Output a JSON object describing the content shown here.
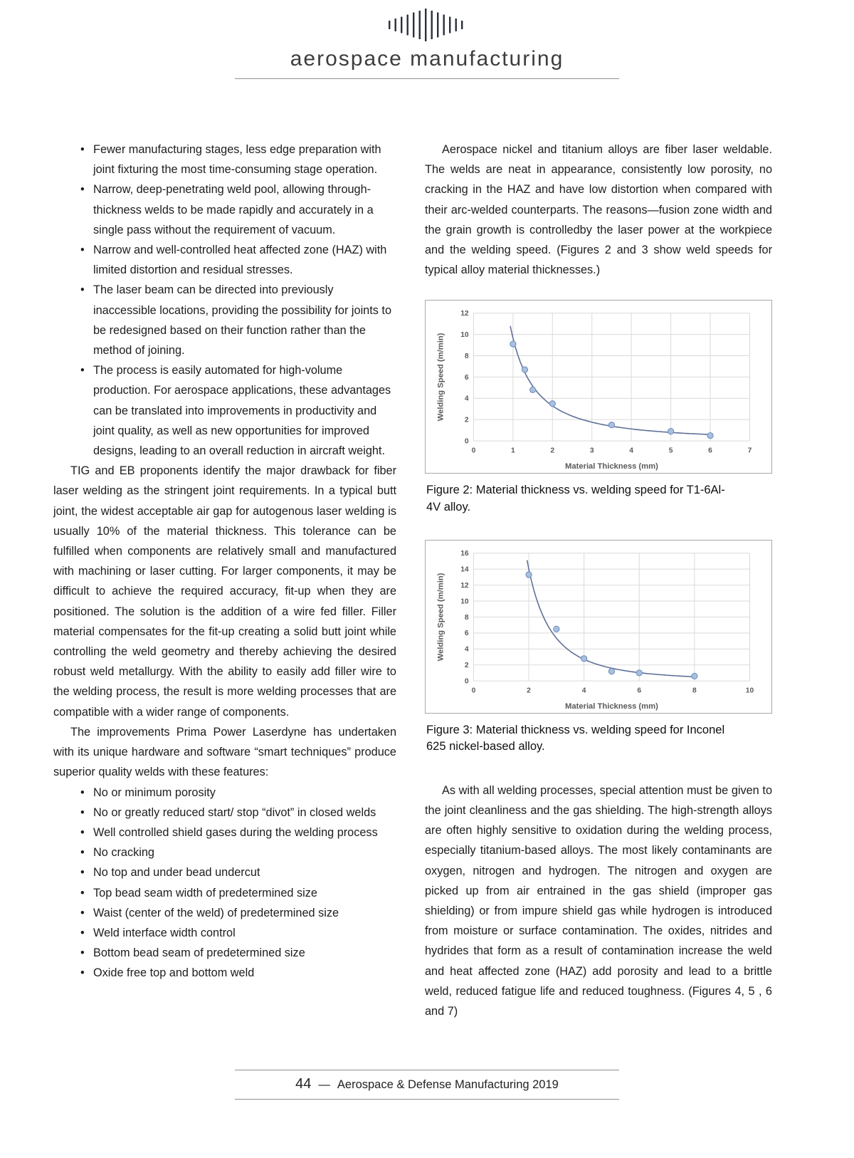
{
  "header": {
    "title": "aerospace manufacturing"
  },
  "left_column": {
    "advantages": [
      "Fewer manufacturing stages, less edge preparation with joint fixturing the most time-consuming stage operation.",
      "Narrow, deep-penetrating weld pool, allowing through-thickness welds to be made rapidly and accurately in a single pass without the requirement of vacuum.",
      "Narrow and well-controlled heat affected zone (HAZ) with limited distortion and residual stresses.",
      "The laser beam can be directed into previously inaccessible locations, providing the possibility for joints to be redesigned based on their function rather than the method of joining.",
      "The process is easily automated for high-volume production. For aerospace applications, these advantages can be translated into improvements in productivity and joint quality, as well as new opportunities for improved designs, leading to an overall reduction in aircraft weight."
    ],
    "paragraph_tig": "TIG and EB proponents identify the major drawback for fiber laser welding as the stringent joint requirements. In a typical butt joint, the widest acceptable air gap for autogenous laser welding is usually 10% of the material thickness. This tolerance can be fulfilled when components are relatively small and manufactured with machining or laser cutting. For larger components, it may be difficult to achieve the required accuracy, fit-up when they are positioned. The solution is the addition of a wire fed filler. Filler material compensates for the fit-up creating a solid butt joint while controlling the weld geometry and thereby achieving the desired robust weld metallurgy. With the ability to easily add filler wire to the welding process, the result is more welding processes that are compatible with a wider range of components.",
    "paragraph_improvements": "The improvements Prima Power Laserdyne has undertaken with its unique hardware and software “smart techniques” produce superior quality welds with these features:",
    "features": [
      "No or minimum porosity",
      "No or greatly reduced start/ stop “divot” in closed welds",
      "Well controlled shield gases during the welding process",
      "No cracking",
      "No top and under bead undercut",
      "Top bead seam width of predetermined size",
      "Waist (center of the weld) of predetermined size",
      "Weld interface width control",
      "Bottom bead seam of predetermined size",
      "Oxide free top and bottom weld"
    ]
  },
  "right_column": {
    "paragraph_intro": "Aerospace nickel and titanium alloys are fiber laser weldable. The welds are neat in appearance, consistently low porosity, no cracking in the HAZ and have low distortion when compared with their arc-welded counterparts. The reasons—fusion zone width and the grain growth is controlledby the laser power at the workpiece and the welding speed. (Figures 2 and 3 show weld speeds for typical alloy material thicknesses.)",
    "figure2_caption": "Figure 2: Material thickness vs. welding speed for T1-6Al-4V alloy.",
    "figure3_caption": "Figure 3: Material thickness vs. welding speed for Inconel 625 nickel-based alloy.",
    "paragraph_contamination": "As with all welding processes, special attention must be given to the joint cleanliness and the gas shielding. The high-strength alloys are often highly sensitive to oxidation during the welding process, especially titanium-based alloys. The most likely contaminants are oxygen, nitrogen and hydrogen. The nitrogen and oxygen are picked up from air entrained in the gas shield (improper gas shielding) or from impure shield gas while hydrogen is introduced from moisture or surface contamination. The oxides, nitrides and hydrides that form as a result of contamination increase the weld and heat affected zone (HAZ) add porosity and lead to a brittle weld, reduced fatigue life and reduced toughness. (Figures 4, 5 , 6 and 7)"
  },
  "footer": {
    "page_number": "44",
    "separator": "—",
    "publication": "Aerospace & Defense Manufacturing 2019"
  },
  "chart_data": [
    {
      "type": "scatter",
      "title": "",
      "xlabel": "Material Thickness (mm)",
      "ylabel": "Welding Speed (m/min)",
      "xlim": [
        0,
        7
      ],
      "xtick_step": 1,
      "ylim": [
        0,
        12
      ],
      "ytick_step": 2,
      "points": [
        {
          "x": 1.0,
          "y": 9.1
        },
        {
          "x": 1.3,
          "y": 6.7
        },
        {
          "x": 1.5,
          "y": 4.8
        },
        {
          "x": 2.0,
          "y": 3.5
        },
        {
          "x": 3.5,
          "y": 1.5
        },
        {
          "x": 5.0,
          "y": 0.9
        },
        {
          "x": 6.0,
          "y": 0.5
        }
      ],
      "trendline": true,
      "grid": true,
      "legend": false,
      "grid_color": "#d9d9d9",
      "axis_text_color": "#595959",
      "point_fill": "#a9c0de",
      "point_stroke": "#6e8fbf",
      "line_color": "#5d6d96"
    },
    {
      "type": "scatter",
      "title": "",
      "xlabel": "Material Thickness (mm)",
      "ylabel": "Welding Speed (m/min)",
      "xlim": [
        0,
        10
      ],
      "xtick_step": 2,
      "ylim": [
        0,
        16
      ],
      "ytick_step": 2,
      "points": [
        {
          "x": 2.0,
          "y": 13.3
        },
        {
          "x": 3.0,
          "y": 6.5
        },
        {
          "x": 4.0,
          "y": 2.8
        },
        {
          "x": 5.0,
          "y": 1.2
        },
        {
          "x": 6.0,
          "y": 1.0
        },
        {
          "x": 8.0,
          "y": 0.6
        }
      ],
      "trendline": true,
      "grid": true,
      "legend": false,
      "grid_color": "#d9d9d9",
      "axis_text_color": "#595959",
      "point_fill": "#a9c0de",
      "point_stroke": "#6e8fbf",
      "line_color": "#5d6d96"
    }
  ]
}
